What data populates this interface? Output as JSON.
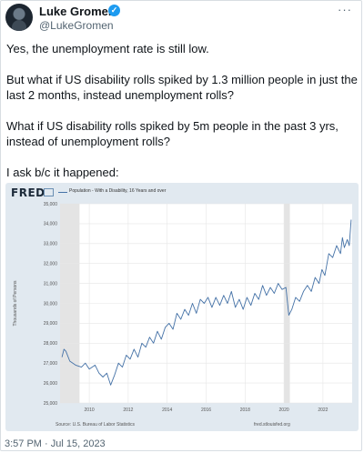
{
  "author": {
    "name": "Luke Gromen",
    "handle": "@LukeGromen",
    "more": "···",
    "verified_icon": "verified-badge-icon"
  },
  "tweet": {
    "paragraphs": [
      "Yes, the unemployment rate is still low.",
      "But what if US disability rolls spiked by 1.3 million people in just the last 2 months, instead unemployment rolls?",
      "What if US disability rolls spiked by 5m people in the past 3 yrs, instead of unemployment rolls?",
      "I ask b/c it happened:"
    ],
    "timestamp": "3:57 PM · Jul 15, 2023"
  },
  "chart": {
    "logo": "FRED",
    "legend": "Population - With a Disability, 16 Years and over",
    "source": "Source: U.S. Bureau of Labor Statistics",
    "url": "fred.stlouisfed.org",
    "ylabel": "Thousands of Persons"
  },
  "chart_data": {
    "type": "line",
    "title": "",
    "xlabel": "",
    "ylabel": "Thousands of Persons",
    "xlim": [
      2008.5,
      2023.5
    ],
    "ylim": [
      25000,
      35000
    ],
    "x_ticks": [
      2010,
      2012,
      2014,
      2016,
      2018,
      2020,
      2022
    ],
    "y_ticks": [
      25000,
      26000,
      27000,
      28000,
      29000,
      30000,
      31000,
      32000,
      33000,
      34000,
      35000
    ],
    "recessions": [
      [
        2008.5,
        2009.5
      ],
      [
        2020.0,
        2020.3
      ]
    ],
    "series": [
      {
        "name": "Population - With a Disability, 16 Years and over",
        "color": "#4572a7",
        "points": [
          [
            2008.6,
            27300
          ],
          [
            2008.7,
            27700
          ],
          [
            2008.8,
            27600
          ],
          [
            2009.0,
            27100
          ],
          [
            2009.3,
            26900
          ],
          [
            2009.6,
            26800
          ],
          [
            2009.8,
            27000
          ],
          [
            2010.0,
            26700
          ],
          [
            2010.3,
            26900
          ],
          [
            2010.5,
            26500
          ],
          [
            2010.7,
            26300
          ],
          [
            2010.9,
            26500
          ],
          [
            2011.1,
            25900
          ],
          [
            2011.3,
            26400
          ],
          [
            2011.5,
            27000
          ],
          [
            2011.7,
            26800
          ],
          [
            2011.9,
            27400
          ],
          [
            2012.1,
            27200
          ],
          [
            2012.3,
            27700
          ],
          [
            2012.5,
            27300
          ],
          [
            2012.7,
            28000
          ],
          [
            2012.9,
            27800
          ],
          [
            2013.1,
            28300
          ],
          [
            2013.3,
            28000
          ],
          [
            2013.5,
            28600
          ],
          [
            2013.7,
            28200
          ],
          [
            2013.9,
            28800
          ],
          [
            2014.1,
            29000
          ],
          [
            2014.3,
            28700
          ],
          [
            2014.5,
            29500
          ],
          [
            2014.7,
            29200
          ],
          [
            2014.9,
            29700
          ],
          [
            2015.1,
            29400
          ],
          [
            2015.3,
            30000
          ],
          [
            2015.5,
            29500
          ],
          [
            2015.7,
            30200
          ],
          [
            2015.9,
            30000
          ],
          [
            2016.1,
            30300
          ],
          [
            2016.3,
            29800
          ],
          [
            2016.5,
            30300
          ],
          [
            2016.7,
            29900
          ],
          [
            2016.9,
            30400
          ],
          [
            2017.1,
            30000
          ],
          [
            2017.3,
            30600
          ],
          [
            2017.5,
            29800
          ],
          [
            2017.7,
            30200
          ],
          [
            2017.9,
            29700
          ],
          [
            2018.1,
            30300
          ],
          [
            2018.3,
            29900
          ],
          [
            2018.5,
            30500
          ],
          [
            2018.7,
            30200
          ],
          [
            2018.9,
            30900
          ],
          [
            2019.1,
            30400
          ],
          [
            2019.3,
            30800
          ],
          [
            2019.5,
            30500
          ],
          [
            2019.7,
            31000
          ],
          [
            2019.9,
            30700
          ],
          [
            2020.1,
            30800
          ],
          [
            2020.25,
            29400
          ],
          [
            2020.4,
            29700
          ],
          [
            2020.6,
            30300
          ],
          [
            2020.8,
            30100
          ],
          [
            2021.0,
            30600
          ],
          [
            2021.2,
            30900
          ],
          [
            2021.4,
            30600
          ],
          [
            2021.6,
            31300
          ],
          [
            2021.8,
            31000
          ],
          [
            2021.95,
            31700
          ],
          [
            2022.1,
            31400
          ],
          [
            2022.3,
            32500
          ],
          [
            2022.5,
            32300
          ],
          [
            2022.7,
            32900
          ],
          [
            2022.9,
            32500
          ],
          [
            2023.0,
            33300
          ],
          [
            2023.1,
            32800
          ],
          [
            2023.25,
            33200
          ],
          [
            2023.35,
            32900
          ],
          [
            2023.45,
            34200
          ]
        ]
      }
    ]
  }
}
